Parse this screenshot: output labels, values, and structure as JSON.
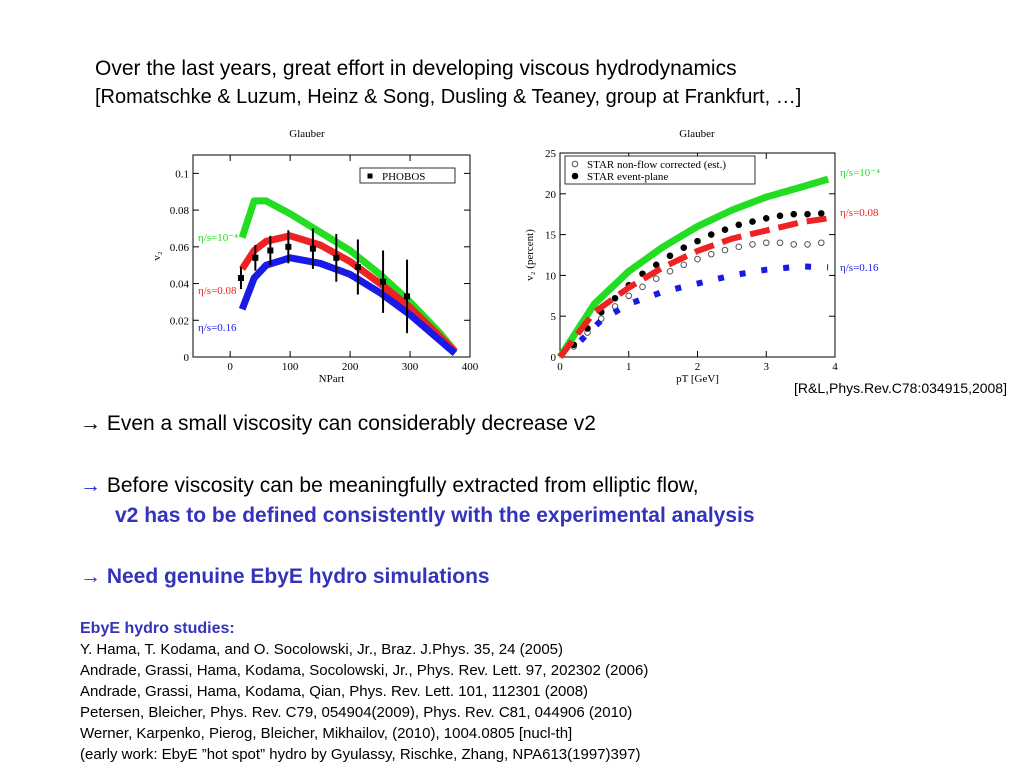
{
  "header": {
    "line1": "Over the last years, great effort in developing viscous hydrodynamics",
    "line2": "[Romatschke & Luzum, Heinz & Song, Dusling & Teaney, group at Frankfurt, …]"
  },
  "citation": "[R&L,Phys.Rev.C78:034915,2008]",
  "bullets": [
    {
      "arrow": "→",
      "text": " Even a small viscosity can considerably decrease v2"
    },
    {
      "arrow": "→",
      "text": " Before viscosity can be meaningfully extracted from elliptic flow,",
      "text2": "v2 has to be defined consistently with the experimental analysis"
    },
    {
      "arrow": "→",
      "text": " Need genuine EbyE hydro simulations"
    }
  ],
  "references": {
    "title": "EbyE hydro studies:",
    "items": [
      "Y. Hama, T. Kodama, and O. Socolowski, Jr., Braz. J.Phys. 35, 24 (2005)",
      "Andrade, Grassi, Hama, Kodama, Socolowski, Jr., Phys. Rev. Lett. 97, 202302 (2006)",
      "Andrade, Grassi, Hama, Kodama, Qian, Phys. Rev. Lett. 101, 112301 (2008)",
      "Petersen, Bleicher, Phys. Rev. C79, 054904(2009), Phys. Rev. C81, 044906 (2010)",
      "Werner, Karpenko, Pierog, Bleicher, Mikhailov, (2010), 1004.0805  [nucl-th]",
      "(early work: EbyE ”hot spot” hydro by Gyulassy, Rischke, Zhang, NPA613(1997)397)"
    ]
  },
  "chart_data": [
    {
      "type": "line",
      "title": "Glauber",
      "x_label": "NPart",
      "y_label": "v₂",
      "xlim": [
        -62,
        400
      ],
      "ylim": [
        0,
        0.11
      ],
      "xticks": [
        0,
        100,
        200,
        300,
        400
      ],
      "yticks": [
        0,
        0.02,
        0.04,
        0.06,
        0.08,
        0.1
      ],
      "series": [
        {
          "name": "η/s=10⁻⁴",
          "color": "#22dd22",
          "style": "line",
          "x": [
            20,
            40,
            60,
            100,
            150,
            200,
            250,
            300,
            350,
            375
          ],
          "values": [
            0.065,
            0.085,
            0.085,
            0.078,
            0.068,
            0.058,
            0.045,
            0.03,
            0.013,
            0.003
          ]
        },
        {
          "name": "η/s=0.08",
          "color": "#ee2222",
          "style": "line",
          "x": [
            20,
            40,
            60,
            100,
            150,
            200,
            250,
            300,
            350,
            375
          ],
          "values": [
            0.048,
            0.058,
            0.063,
            0.066,
            0.061,
            0.052,
            0.04,
            0.027,
            0.011,
            0.003
          ]
        },
        {
          "name": "η/s=0.16",
          "color": "#1a1ae6",
          "style": "line",
          "x": [
            20,
            40,
            60,
            100,
            150,
            200,
            250,
            300,
            350,
            375
          ],
          "values": [
            0.026,
            0.043,
            0.05,
            0.054,
            0.051,
            0.045,
            0.035,
            0.023,
            0.009,
            0.002
          ]
        },
        {
          "name": "PHOBOS",
          "color": "#000000",
          "style": "square",
          "x": [
            18,
            42,
            67,
            97,
            138,
            177,
            213,
            255,
            295
          ],
          "values": [
            0.043,
            0.054,
            0.058,
            0.06,
            0.059,
            0.054,
            0.049,
            0.041,
            0.033
          ],
          "errors": [
            0.006,
            0.007,
            0.008,
            0.009,
            0.011,
            0.013,
            0.015,
            0.017,
            0.02
          ]
        }
      ]
    },
    {
      "type": "line",
      "title": "Glauber",
      "x_label": "pT [GeV]",
      "y_label": "v₂ (percent)",
      "xlim": [
        0,
        4
      ],
      "ylim": [
        0,
        25
      ],
      "xticks": [
        0,
        1,
        2,
        3,
        4
      ],
      "yticks": [
        0,
        5,
        10,
        15,
        20,
        25
      ],
      "series": [
        {
          "name": "STAR non-flow corrected (est.)",
          "color": "#555555",
          "style": "open-circle",
          "x": [
            0.2,
            0.4,
            0.6,
            0.8,
            1.0,
            1.2,
            1.4,
            1.6,
            1.8,
            2.0,
            2.2,
            2.4,
            2.6,
            2.8,
            3.0,
            3.2,
            3.4,
            3.6,
            3.8
          ],
          "values": [
            1.3,
            3,
            4.7,
            6.2,
            7.5,
            8.6,
            9.6,
            10.5,
            11.3,
            12,
            12.6,
            13.1,
            13.5,
            13.8,
            14,
            14,
            13.8,
            13.8,
            14
          ]
        },
        {
          "name": "STAR event-plane",
          "color": "#000000",
          "style": "circle",
          "x": [
            0.2,
            0.4,
            0.6,
            0.8,
            1.0,
            1.2,
            1.4,
            1.6,
            1.8,
            2.0,
            2.2,
            2.4,
            2.6,
            2.8,
            3.0,
            3.2,
            3.4,
            3.6,
            3.8
          ],
          "values": [
            1.5,
            3.5,
            5.5,
            7.2,
            8.8,
            10.2,
            11.3,
            12.4,
            13.4,
            14.2,
            15,
            15.6,
            16.2,
            16.6,
            17,
            17.3,
            17.5,
            17.5,
            17.6
          ]
        },
        {
          "name": "η/s=10⁻⁴",
          "color": "#22dd22",
          "style": "line",
          "x": [
            0,
            0.5,
            1,
            1.5,
            2,
            2.5,
            3,
            3.5,
            3.9
          ],
          "values": [
            0,
            6.5,
            10.5,
            13.5,
            16,
            18,
            19.6,
            20.8,
            21.8
          ]
        },
        {
          "name": "η/s=0.08",
          "color": "#ee2222",
          "style": "dashed",
          "x": [
            0,
            0.5,
            1,
            1.5,
            2,
            2.5,
            3,
            3.5,
            3.9
          ],
          "values": [
            0,
            5.5,
            8.5,
            11,
            13,
            14.5,
            15.5,
            16.5,
            17
          ]
        },
        {
          "name": "η/s=0.16",
          "color": "#1a1ae6",
          "style": "dotted",
          "x": [
            0.3,
            0.6,
            1,
            1.5,
            2,
            2.5,
            3,
            3.5,
            3.9
          ],
          "values": [
            2,
            4.5,
            6.5,
            8,
            9,
            10,
            10.7,
            11.1,
            11
          ]
        }
      ]
    }
  ]
}
